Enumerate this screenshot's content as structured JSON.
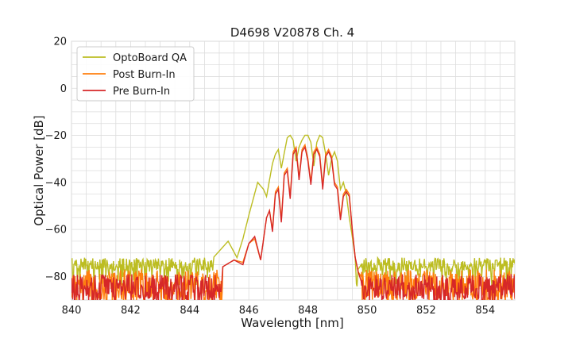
{
  "chart_data": {
    "type": "line",
    "title": "D4698 V20878 Ch. 4",
    "xlabel": "Wavelength [nm]",
    "ylabel": "Optical Power [dB]",
    "xlim": [
      840,
      855
    ],
    "ylim": [
      -90,
      20
    ],
    "xticks": [
      "840",
      "842",
      "844",
      "846",
      "848",
      "850",
      "852",
      "854"
    ],
    "yticks": [
      "20",
      "0",
      "−20",
      "−40",
      "−60",
      "−80"
    ],
    "grid": true,
    "legend": "top-left",
    "series": [
      {
        "name": "OptoBoard QA",
        "color": "#bcbd22",
        "noise_floor": -75,
        "x": [
          840.0,
          844.8,
          845.3,
          845.6,
          845.8,
          846.0,
          846.3,
          846.5,
          846.6,
          846.8,
          846.9,
          847.0,
          847.1,
          847.3,
          847.4,
          847.5,
          847.6,
          847.7,
          847.8,
          847.9,
          848.0,
          848.1,
          848.2,
          848.3,
          848.4,
          848.5,
          848.6,
          848.7,
          848.8,
          848.9,
          849.0,
          849.1,
          849.2,
          849.3,
          849.4,
          849.5,
          849.6,
          849.65,
          849.7,
          849.8,
          855.0
        ],
        "y": [
          -75,
          -72,
          -65,
          -72,
          -64,
          -54,
          -40,
          -43,
          -46,
          -32,
          -28,
          -26,
          -34,
          -21,
          -20,
          -22,
          -31,
          -25,
          -22,
          -20,
          -20,
          -23,
          -33,
          -23,
          -20,
          -21,
          -28,
          -37,
          -30,
          -27,
          -31,
          -43,
          -40,
          -45,
          -55,
          -63,
          -72,
          -86,
          -77,
          -75,
          -75
        ]
      },
      {
        "name": "Post Burn-In",
        "color": "#ff7f0e",
        "noise_floor": -80,
        "x": [
          840.0,
          845.1,
          845.5,
          845.8,
          846.0,
          846.2,
          846.4,
          846.6,
          846.7,
          846.8,
          846.9,
          847.0,
          847.1,
          847.2,
          847.3,
          847.4,
          847.5,
          847.6,
          847.7,
          847.8,
          847.9,
          848.0,
          848.1,
          848.2,
          848.3,
          848.4,
          848.5,
          848.6,
          848.7,
          848.8,
          848.9,
          849.0,
          849.1,
          849.2,
          849.3,
          849.4,
          849.5,
          849.6,
          849.7,
          849.8,
          855.0
        ],
        "y": [
          -80,
          -76,
          -73,
          -74,
          -66,
          -64,
          -73,
          -55,
          -52,
          -60,
          -44,
          -42,
          -56,
          -36,
          -34,
          -46,
          -27,
          -25,
          -38,
          -26,
          -24,
          -30,
          -40,
          -27,
          -25,
          -28,
          -42,
          -28,
          -26,
          -29,
          -40,
          -42,
          -55,
          -45,
          -43,
          -45,
          -60,
          -72,
          -78,
          -80,
          -80
        ]
      },
      {
        "name": "Pre Burn-In",
        "color": "#d62728",
        "noise_floor": -82,
        "x": [
          840.0,
          845.1,
          845.5,
          845.8,
          846.0,
          846.2,
          846.4,
          846.6,
          846.7,
          846.8,
          846.9,
          847.0,
          847.1,
          847.2,
          847.3,
          847.4,
          847.5,
          847.6,
          847.7,
          847.8,
          847.9,
          848.0,
          848.1,
          848.2,
          848.3,
          848.4,
          848.5,
          848.6,
          848.7,
          848.8,
          848.9,
          849.0,
          849.1,
          849.2,
          849.3,
          849.4,
          849.5,
          849.6,
          849.7,
          849.8,
          855.0
        ],
        "y": [
          -82,
          -76,
          -73,
          -75,
          -66,
          -63,
          -73,
          -55,
          -52,
          -61,
          -45,
          -43,
          -57,
          -37,
          -35,
          -47,
          -28,
          -26,
          -39,
          -27,
          -25,
          -31,
          -41,
          -28,
          -26,
          -29,
          -43,
          -29,
          -27,
          -30,
          -41,
          -43,
          -56,
          -46,
          -44,
          -46,
          -60,
          -72,
          -78,
          -82,
          -82
        ]
      }
    ]
  }
}
